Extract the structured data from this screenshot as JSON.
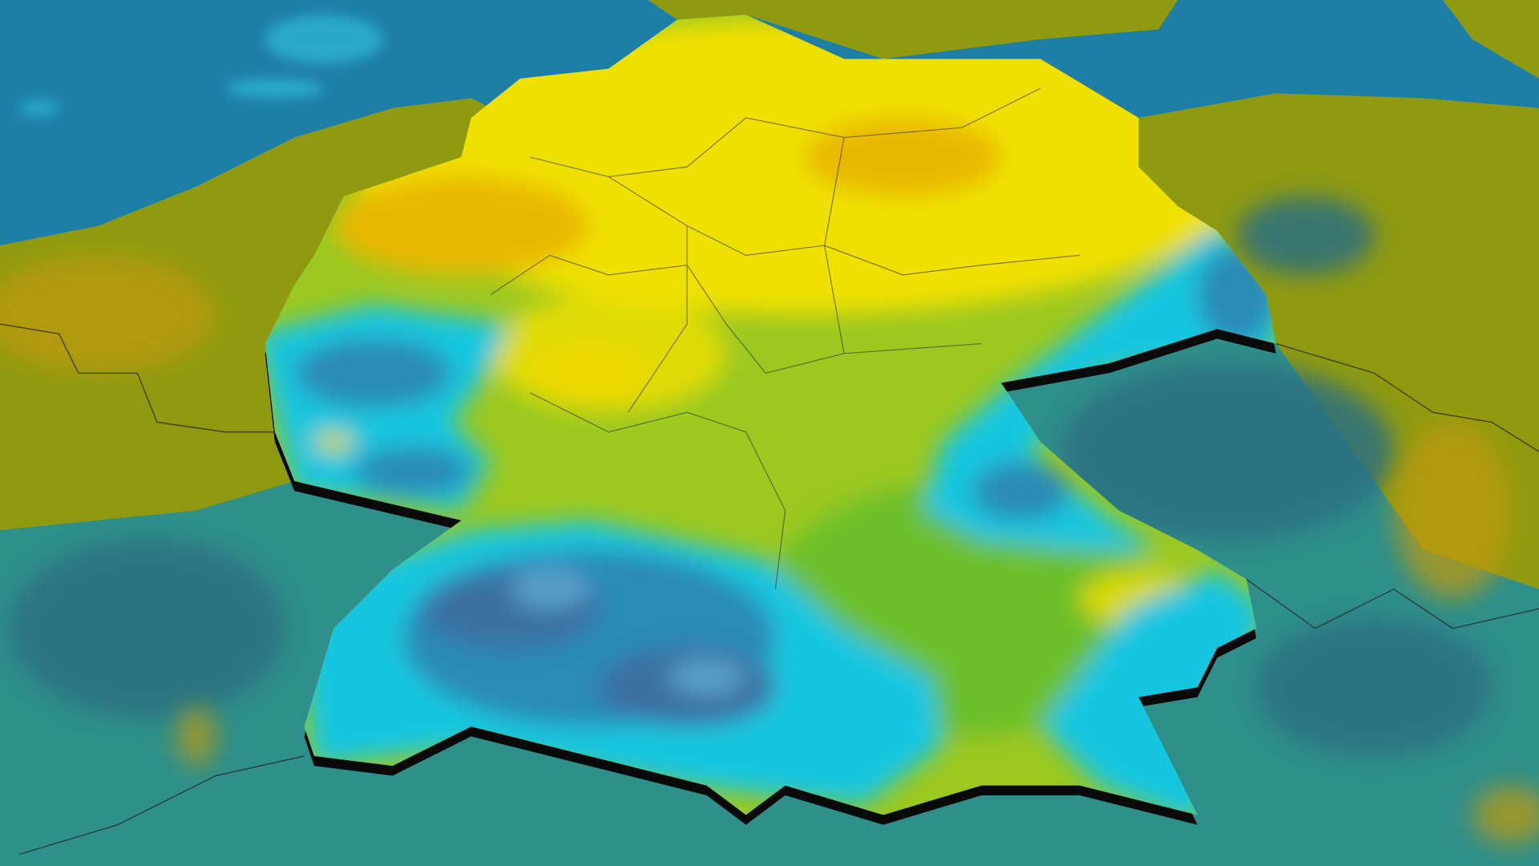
{
  "map": {
    "view": "perspective-3d",
    "layer_type": "filled-contour",
    "colors": {
      "sea": "#1e7fa6",
      "sea_light": "#2fb3d6",
      "land_outside_olive": "#8f9a10",
      "land_outside_teal": "#2f8f8a",
      "land_outside_deepteal": "#2b6f80",
      "high_yellow": "#f0e000",
      "high_orange": "#e8b800",
      "mid_green": "#9cc820",
      "low_green": "#6cbf2a",
      "cyan": "#18c6e0",
      "blue": "#2a8ab8",
      "deep_blue": "#3a6fa0",
      "border_edge": "#0a0a0a"
    }
  }
}
